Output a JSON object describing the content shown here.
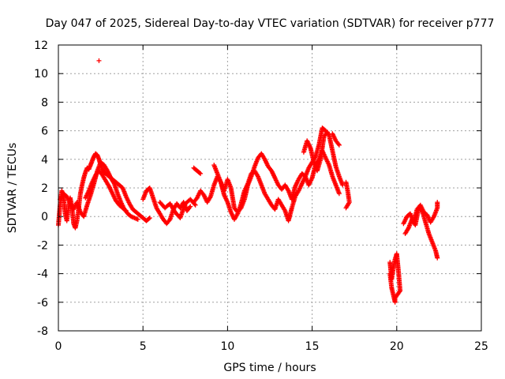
{
  "chart_data": {
    "type": "scatter",
    "title": "Day 047 of 2025, Sidereal Day-to-day VTEC variation (SDTVAR) for receiver p777",
    "xlabel": "GPS time / hours",
    "ylabel": "SDTVAR / TECUs",
    "xlim": [
      0,
      25
    ],
    "ylim": [
      -8,
      12
    ],
    "xticks": [
      "0",
      "5",
      "10",
      "15",
      "20",
      "25"
    ],
    "yticks": [
      "-8",
      "-6",
      "-4",
      "-2",
      "0",
      "2",
      "4",
      "6",
      "8",
      "10",
      "12"
    ],
    "grid": true,
    "marker": "+",
    "color": "#ff0000",
    "series": [
      {
        "name": "SDTVAR",
        "segments": [
          [
            [
              0.0,
              -0.6
            ],
            [
              0.1,
              0.8
            ],
            [
              0.2,
              1.8
            ],
            [
              0.3,
              1.5
            ],
            [
              0.4,
              0.2
            ],
            [
              0.5,
              -0.3
            ],
            [
              0.6,
              0.6
            ],
            [
              0.7,
              1.3
            ],
            [
              0.8,
              0.7
            ],
            [
              0.9,
              -0.5
            ],
            [
              1.0,
              -0.8
            ],
            [
              1.1,
              -0.3
            ],
            [
              1.2,
              0.6
            ],
            [
              1.3,
              1.6
            ],
            [
              1.4,
              2.2
            ],
            [
              1.5,
              2.7
            ],
            [
              1.6,
              3.1
            ],
            [
              1.7,
              3.4
            ],
            [
              1.8,
              3.3
            ],
            [
              1.9,
              3.6
            ],
            [
              2.0,
              3.9
            ],
            [
              2.1,
              4.2
            ],
            [
              2.2,
              4.4
            ],
            [
              2.3,
              4.3
            ],
            [
              2.4,
              4.0
            ],
            [
              2.5,
              3.6
            ],
            [
              2.6,
              3.3
            ],
            [
              2.7,
              3.1
            ],
            [
              2.8,
              3.0
            ],
            [
              3.0,
              2.8
            ],
            [
              3.2,
              2.6
            ],
            [
              3.4,
              2.4
            ],
            [
              3.6,
              2.2
            ],
            [
              3.8,
              2.0
            ],
            [
              4.0,
              1.4
            ],
            [
              4.2,
              0.9
            ],
            [
              4.4,
              0.5
            ],
            [
              4.6,
              0.3
            ],
            [
              4.8,
              0.1
            ],
            [
              5.0,
              -0.1
            ],
            [
              5.2,
              -0.3
            ],
            [
              5.4,
              -0.1
            ]
          ],
          [
            [
              0.1,
              1.2
            ],
            [
              0.3,
              1.6
            ],
            [
              0.5,
              1.4
            ],
            [
              0.7,
              0.9
            ],
            [
              0.9,
              0.5
            ],
            [
              1.1,
              1.0
            ],
            [
              1.3,
              0.3
            ],
            [
              1.5,
              0.0
            ],
            [
              1.7,
              0.8
            ],
            [
              1.9,
              1.5
            ],
            [
              2.1,
              2.3
            ],
            [
              2.3,
              3.2
            ],
            [
              2.5,
              3.8
            ],
            [
              2.7,
              3.6
            ],
            [
              2.9,
              3.2
            ],
            [
              3.1,
              2.7
            ],
            [
              3.3,
              2.3
            ],
            [
              3.5,
              1.6
            ],
            [
              3.7,
              1.0
            ],
            [
              3.9,
              0.5
            ],
            [
              4.1,
              0.2
            ],
            [
              4.3,
              0.0
            ],
            [
              4.5,
              -0.1
            ],
            [
              4.7,
              -0.2
            ]
          ],
          [
            [
              1.6,
              1.3
            ],
            [
              1.8,
              1.8
            ],
            [
              2.0,
              2.4
            ],
            [
              2.2,
              2.9
            ],
            [
              2.4,
              3.2
            ],
            [
              2.6,
              2.9
            ],
            [
              2.8,
              2.5
            ],
            [
              3.0,
              2.1
            ],
            [
              3.2,
              1.6
            ],
            [
              3.4,
              1.1
            ],
            [
              3.6,
              0.8
            ],
            [
              3.8,
              0.6
            ],
            [
              4.0,
              0.4
            ]
          ],
          [
            [
              2.4,
              10.9
            ]
          ],
          [
            [
              5.0,
              1.2
            ],
            [
              5.2,
              1.8
            ],
            [
              5.4,
              2.0
            ],
            [
              5.6,
              1.3
            ],
            [
              5.8,
              0.6
            ],
            [
              6.0,
              0.2
            ],
            [
              6.2,
              -0.2
            ],
            [
              6.4,
              -0.5
            ],
            [
              6.6,
              -0.2
            ],
            [
              6.8,
              0.5
            ],
            [
              7.0,
              0.9
            ],
            [
              7.2,
              0.6
            ],
            [
              7.4,
              1.0
            ],
            [
              7.6,
              0.4
            ],
            [
              7.8,
              0.7
            ]
          ],
          [
            [
              6.0,
              1.0
            ],
            [
              6.3,
              0.6
            ],
            [
              6.6,
              0.9
            ],
            [
              6.9,
              0.3
            ],
            [
              7.2,
              -0.1
            ],
            [
              7.5,
              0.9
            ],
            [
              7.8,
              1.2
            ],
            [
              8.1,
              0.8
            ]
          ],
          [
            [
              8.0,
              3.4
            ],
            [
              8.2,
              3.2
            ],
            [
              8.4,
              3.0
            ]
          ],
          [
            [
              8.0,
              1.0
            ],
            [
              8.2,
              1.3
            ],
            [
              8.4,
              1.8
            ],
            [
              8.6,
              1.5
            ],
            [
              8.8,
              1.0
            ],
            [
              9.0,
              1.4
            ],
            [
              9.2,
              2.2
            ],
            [
              9.4,
              2.8
            ],
            [
              9.6,
              2.4
            ],
            [
              9.8,
              1.8
            ],
            [
              10.0,
              2.6
            ],
            [
              10.2,
              2.0
            ],
            [
              10.4,
              0.6
            ],
            [
              10.6,
              0.3
            ],
            [
              10.8,
              0.6
            ],
            [
              11.0,
              1.2
            ],
            [
              11.2,
              2.2
            ],
            [
              11.4,
              2.8
            ],
            [
              11.6,
              3.5
            ],
            [
              11.8,
              4.1
            ],
            [
              12.0,
              4.4
            ],
            [
              12.2,
              4.0
            ],
            [
              12.4,
              3.5
            ],
            [
              12.6,
              3.2
            ],
            [
              12.8,
              2.7
            ],
            [
              13.0,
              2.2
            ],
            [
              13.2,
              1.9
            ],
            [
              13.4,
              2.2
            ],
            [
              13.6,
              1.8
            ],
            [
              13.8,
              1.2
            ],
            [
              14.0,
              2.1
            ],
            [
              14.2,
              2.6
            ],
            [
              14.4,
              3.0
            ],
            [
              14.6,
              2.8
            ],
            [
              14.8,
              3.4
            ],
            [
              15.0,
              3.8
            ],
            [
              15.2,
              4.2
            ],
            [
              15.4,
              5.0
            ],
            [
              15.6,
              6.2
            ],
            [
              15.8,
              6.0
            ],
            [
              16.0,
              5.7
            ],
            [
              16.2,
              4.6
            ],
            [
              16.4,
              3.5
            ],
            [
              16.6,
              2.8
            ],
            [
              16.8,
              2.2
            ]
          ],
          [
            [
              9.2,
              3.6
            ],
            [
              9.4,
              3.0
            ],
            [
              9.6,
              2.4
            ],
            [
              9.8,
              1.5
            ],
            [
              10.0,
              1.0
            ],
            [
              10.2,
              0.3
            ],
            [
              10.4,
              -0.2
            ],
            [
              10.6,
              0.2
            ],
            [
              10.8,
              0.9
            ],
            [
              11.0,
              1.8
            ],
            [
              11.2,
              2.3
            ],
            [
              11.4,
              3.0
            ],
            [
              11.6,
              3.2
            ],
            [
              11.8,
              2.8
            ],
            [
              12.0,
              2.2
            ],
            [
              12.2,
              1.6
            ],
            [
              12.4,
              1.2
            ],
            [
              12.6,
              0.8
            ],
            [
              12.8,
              0.5
            ],
            [
              13.0,
              1.2
            ],
            [
              13.2,
              0.8
            ],
            [
              13.4,
              0.4
            ],
            [
              13.6,
              -0.3
            ],
            [
              13.8,
              0.6
            ],
            [
              14.0,
              1.4
            ],
            [
              14.2,
              1.8
            ],
            [
              14.4,
              2.3
            ],
            [
              14.6,
              2.8
            ],
            [
              14.8,
              2.2
            ],
            [
              15.0,
              2.7
            ],
            [
              15.2,
              3.6
            ],
            [
              15.4,
              4.0
            ],
            [
              15.6,
              4.6
            ],
            [
              15.8,
              4.1
            ],
            [
              16.0,
              3.6
            ],
            [
              16.2,
              2.8
            ],
            [
              16.4,
              2.2
            ],
            [
              16.6,
              1.6
            ]
          ],
          [
            [
              14.5,
              4.5
            ],
            [
              14.7,
              5.3
            ],
            [
              14.9,
              4.8
            ],
            [
              15.1,
              3.8
            ],
            [
              15.3,
              3.2
            ],
            [
              15.5,
              4.0
            ],
            [
              15.7,
              5.6
            ],
            [
              15.9,
              5.9
            ]
          ],
          [
            [
              16.2,
              5.8
            ],
            [
              16.4,
              5.3
            ],
            [
              16.6,
              5.0
            ]
          ],
          [
            [
              17.0,
              2.4
            ],
            [
              17.1,
              1.8
            ],
            [
              17.2,
              1.0
            ],
            [
              17.0,
              0.6
            ]
          ],
          [
            [
              19.6,
              -3.2
            ],
            [
              19.7,
              -4.4
            ],
            [
              19.8,
              -3.6
            ],
            [
              19.9,
              -3.0
            ],
            [
              20.0,
              -2.6
            ],
            [
              20.1,
              -3.8
            ],
            [
              20.2,
              -5.2
            ],
            [
              19.9,
              -5.7
            ],
            [
              19.9,
              -6.0
            ],
            [
              19.7,
              -5.0
            ],
            [
              19.6,
              -4.0
            ]
          ],
          [
            [
              20.4,
              -0.5
            ],
            [
              20.6,
              0.0
            ],
            [
              20.8,
              0.2
            ],
            [
              21.0,
              -0.4
            ],
            [
              21.2,
              0.5
            ],
            [
              21.4,
              0.8
            ],
            [
              21.6,
              0.3
            ],
            [
              21.8,
              0.1
            ],
            [
              22.0,
              -0.4
            ],
            [
              22.2,
              0.0
            ],
            [
              22.4,
              0.6
            ],
            [
              22.4,
              1.0
            ]
          ],
          [
            [
              20.5,
              -1.2
            ],
            [
              20.7,
              -0.8
            ],
            [
              20.9,
              -0.2
            ],
            [
              21.1,
              -0.6
            ],
            [
              21.3,
              0.6
            ],
            [
              21.5,
              0.4
            ],
            [
              21.7,
              -0.4
            ],
            [
              21.9,
              -1.2
            ],
            [
              22.1,
              -1.8
            ],
            [
              22.3,
              -2.4
            ],
            [
              22.4,
              -2.9
            ]
          ]
        ]
      }
    ]
  }
}
